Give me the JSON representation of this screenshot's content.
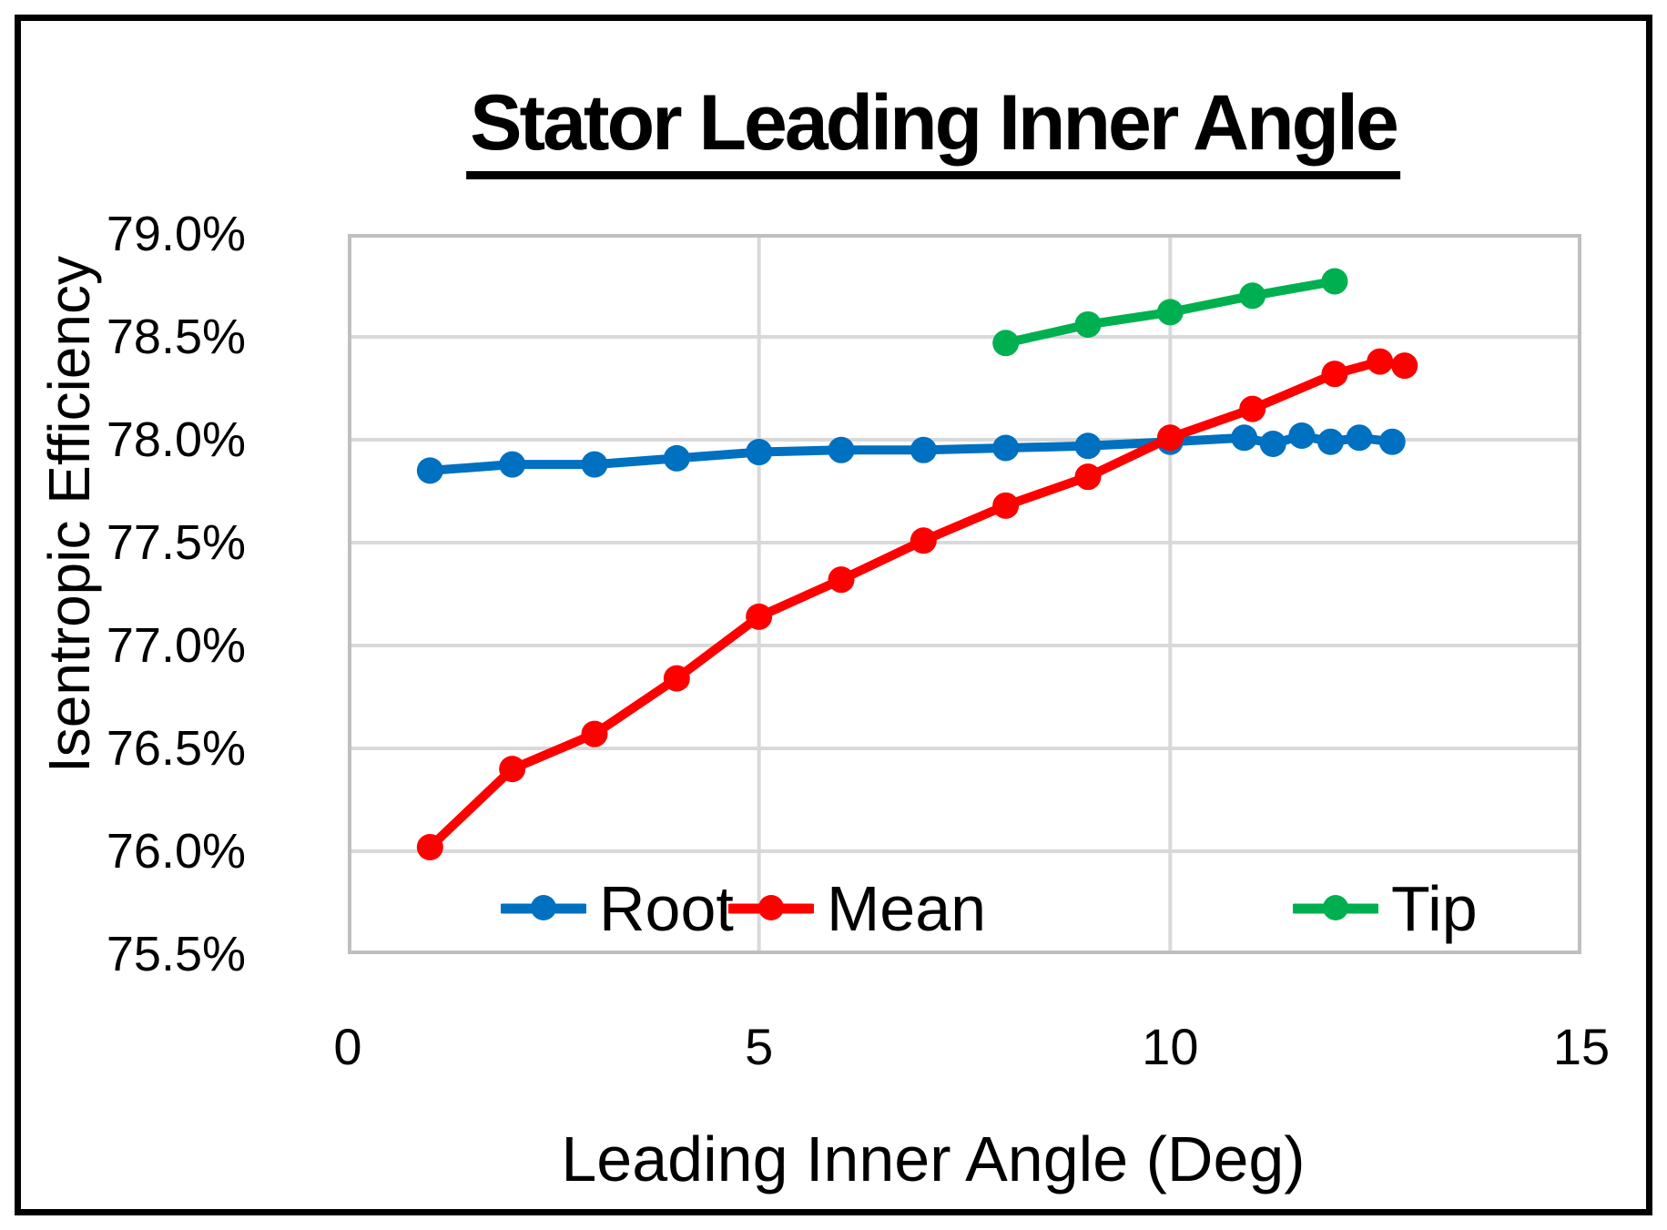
{
  "chart": {
    "title": "Stator Leading Inner Angle",
    "y_axis_title": "Isentropic Efficiency",
    "x_axis_title": "Leading Inner Angle (Deg)"
  },
  "chart_data": {
    "type": "line",
    "title": "Stator Leading Inner Angle",
    "xlabel": "Leading Inner Angle (Deg)",
    "ylabel": "Isentropic Efficiency",
    "xlim": [
      0,
      15
    ],
    "ylim": [
      75.5,
      79.0
    ],
    "grid": true,
    "legend_position": "bottom-inside",
    "x_ticks": [
      {
        "value": 0,
        "label": "0"
      },
      {
        "value": 5,
        "label": "5"
      },
      {
        "value": 10,
        "label": "10"
      },
      {
        "value": 15,
        "label": "15"
      }
    ],
    "y_ticks": [
      {
        "value": 79.0,
        "label": "79.0%"
      },
      {
        "value": 78.5,
        "label": "78.5%"
      },
      {
        "value": 78.0,
        "label": "78.0%"
      },
      {
        "value": 77.5,
        "label": "77.5%"
      },
      {
        "value": 77.0,
        "label": "77.0%"
      },
      {
        "value": 76.5,
        "label": "76.5%"
      },
      {
        "value": 76.0,
        "label": "76.0%"
      },
      {
        "value": 75.5,
        "label": "75.5%"
      }
    ],
    "colors": {
      "gridline": "#D9D9D9",
      "plot_border": "#BFBFBF"
    },
    "series": [
      {
        "name": "Root",
        "color": "#0070C0",
        "x": [
          1,
          2,
          3,
          4,
          5,
          6,
          7,
          8,
          9,
          10,
          10.9,
          11.25,
          11.6,
          11.95,
          12.3,
          12.7
        ],
        "y": [
          77.85,
          77.88,
          77.88,
          77.91,
          77.94,
          77.95,
          77.95,
          77.96,
          77.97,
          77.99,
          78.01,
          77.98,
          78.02,
          77.99,
          78.01,
          77.99
        ]
      },
      {
        "name": "Mean",
        "color": "#FF0000",
        "x": [
          1,
          2,
          3,
          4,
          5,
          6,
          7,
          8,
          9,
          10,
          11,
          12,
          12.55,
          12.85
        ],
        "y": [
          76.02,
          76.4,
          76.57,
          76.84,
          77.14,
          77.32,
          77.51,
          77.68,
          77.82,
          78.01,
          78.15,
          78.32,
          78.38,
          78.36
        ]
      },
      {
        "name": "Tip",
        "color": "#00B050",
        "x": [
          8,
          9,
          10,
          11,
          12
        ],
        "y": [
          78.47,
          78.56,
          78.62,
          78.7,
          78.77
        ]
      }
    ]
  }
}
